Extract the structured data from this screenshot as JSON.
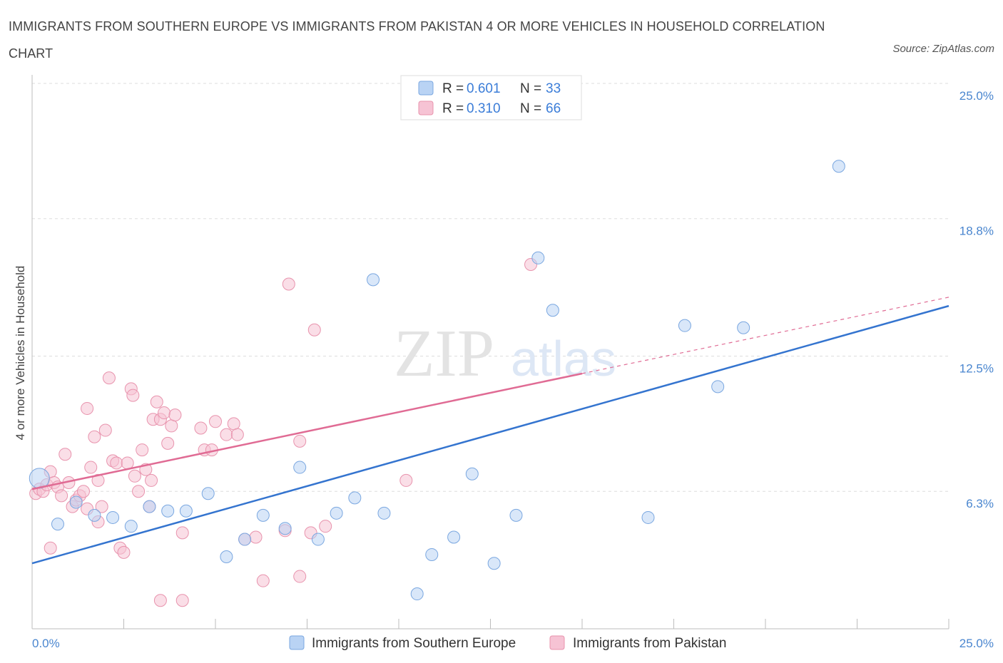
{
  "title": "IMMIGRANTS FROM SOUTHERN EUROPE VS IMMIGRANTS FROM PAKISTAN 4 OR MORE VEHICLES IN HOUSEHOLD CORRELATION CHART",
  "source": "Source: ZipAtlas.com",
  "watermark": {
    "zip": "ZIP",
    "atlas": "atlas"
  },
  "colors": {
    "blue_fill": "#b9d3f4",
    "blue_stroke": "#7aa7e0",
    "blue_line": "#3474cf",
    "pink_fill": "#f6c3d4",
    "pink_stroke": "#e893ad",
    "pink_line": "#e06b94",
    "axis_label": "#4a86cf",
    "grid": "#dddddd"
  },
  "legend_stats": [
    {
      "r_label": "R = ",
      "r_value": "0.601",
      "n_label": "N = ",
      "n_value": "33"
    },
    {
      "r_label": "R = ",
      "r_value": "0.310",
      "n_label": "N = ",
      "n_value": "66"
    }
  ],
  "chart_data": {
    "type": "scatter",
    "title": "IMMIGRANTS FROM SOUTHERN EUROPE VS IMMIGRANTS FROM PAKISTAN 4 OR MORE VEHICLES IN HOUSEHOLD CORRELATION CHART",
    "xlabel": "",
    "ylabel": "4 or more Vehicles in Household",
    "xlim": [
      0,
      25
    ],
    "ylim": [
      0,
      25
    ],
    "x_tick_labels": [
      "0.0%",
      "25.0%"
    ],
    "y_ticks": [
      6.3,
      12.5,
      18.8,
      25.0
    ],
    "y_tick_labels": [
      "6.3%",
      "12.5%",
      "18.8%",
      "25.0%"
    ],
    "grid": true,
    "legend_position": "bottom",
    "series": [
      {
        "name": "Immigrants from Southern Europe",
        "color": "#7aa7e0",
        "r": 0.601,
        "n": 33,
        "points": [
          [
            0.2,
            6.9
          ],
          [
            0.7,
            4.8
          ],
          [
            1.2,
            5.8
          ],
          [
            1.7,
            5.2
          ],
          [
            2.2,
            5.1
          ],
          [
            2.7,
            4.7
          ],
          [
            3.2,
            5.6
          ],
          [
            3.7,
            5.4
          ],
          [
            4.2,
            5.4
          ],
          [
            4.8,
            6.2
          ],
          [
            5.3,
            3.3
          ],
          [
            5.8,
            4.1
          ],
          [
            6.3,
            5.2
          ],
          [
            6.9,
            4.6
          ],
          [
            7.3,
            7.4
          ],
          [
            7.8,
            4.1
          ],
          [
            8.3,
            5.3
          ],
          [
            8.8,
            6.0
          ],
          [
            9.3,
            16.0
          ],
          [
            9.6,
            5.3
          ],
          [
            10.5,
            1.6
          ],
          [
            10.9,
            3.4
          ],
          [
            11.5,
            4.2
          ],
          [
            12.0,
            7.1
          ],
          [
            12.6,
            3.0
          ],
          [
            13.2,
            5.2
          ],
          [
            13.8,
            17.0
          ],
          [
            14.2,
            14.6
          ],
          [
            16.8,
            5.1
          ],
          [
            17.8,
            13.9
          ],
          [
            18.7,
            11.1
          ],
          [
            19.4,
            13.8
          ],
          [
            22.0,
            21.2
          ]
        ],
        "trend": {
          "x0": 0,
          "y0": 3.0,
          "x1": 25,
          "y1": 14.8
        }
      },
      {
        "name": "Immigrants from Pakistan",
        "color": "#e893ad",
        "r": 0.31,
        "n": 66,
        "points": [
          [
            0.1,
            6.2
          ],
          [
            0.2,
            6.4
          ],
          [
            0.3,
            6.3
          ],
          [
            0.4,
            6.6
          ],
          [
            0.5,
            3.7
          ],
          [
            0.5,
            7.2
          ],
          [
            0.6,
            6.7
          ],
          [
            0.7,
            6.5
          ],
          [
            0.8,
            6.1
          ],
          [
            0.9,
            8.0
          ],
          [
            1.0,
            6.7
          ],
          [
            1.1,
            5.6
          ],
          [
            1.2,
            5.9
          ],
          [
            1.3,
            6.1
          ],
          [
            1.4,
            6.3
          ],
          [
            1.5,
            5.5
          ],
          [
            1.5,
            10.1
          ],
          [
            1.6,
            7.4
          ],
          [
            1.7,
            8.8
          ],
          [
            1.8,
            6.8
          ],
          [
            1.8,
            4.9
          ],
          [
            1.9,
            5.6
          ],
          [
            2.0,
            9.1
          ],
          [
            2.1,
            11.5
          ],
          [
            2.2,
            7.7
          ],
          [
            2.3,
            7.6
          ],
          [
            2.4,
            3.7
          ],
          [
            2.5,
            3.5
          ],
          [
            2.6,
            7.6
          ],
          [
            2.7,
            11.0
          ],
          [
            2.75,
            10.7
          ],
          [
            2.8,
            7.0
          ],
          [
            2.9,
            6.3
          ],
          [
            3.0,
            8.2
          ],
          [
            3.1,
            7.3
          ],
          [
            3.2,
            5.6
          ],
          [
            3.25,
            6.8
          ],
          [
            3.3,
            9.6
          ],
          [
            3.4,
            10.4
          ],
          [
            3.5,
            9.6
          ],
          [
            3.5,
            1.3
          ],
          [
            3.6,
            9.9
          ],
          [
            3.7,
            8.5
          ],
          [
            3.8,
            9.3
          ],
          [
            3.9,
            9.8
          ],
          [
            4.1,
            1.3
          ],
          [
            4.1,
            4.4
          ],
          [
            4.6,
            9.2
          ],
          [
            4.7,
            8.2
          ],
          [
            4.9,
            8.2
          ],
          [
            5.0,
            9.5
          ],
          [
            5.3,
            8.9
          ],
          [
            5.5,
            9.4
          ],
          [
            5.6,
            8.9
          ],
          [
            5.8,
            4.1
          ],
          [
            6.1,
            4.2
          ],
          [
            6.3,
            2.2
          ],
          [
            7.0,
            15.8
          ],
          [
            7.3,
            8.6
          ],
          [
            7.3,
            2.4
          ],
          [
            7.6,
            4.4
          ],
          [
            7.7,
            13.7
          ],
          [
            8.0,
            4.7
          ],
          [
            10.2,
            6.8
          ],
          [
            13.6,
            16.7
          ],
          [
            6.9,
            4.5
          ]
        ],
        "trend": {
          "x0": 0,
          "y0": 6.4,
          "x1": 15.0,
          "y1": 11.7
        },
        "trend_dashed": {
          "x0": 15.0,
          "y0": 11.7,
          "x1": 25,
          "y1": 15.2
        }
      }
    ]
  }
}
